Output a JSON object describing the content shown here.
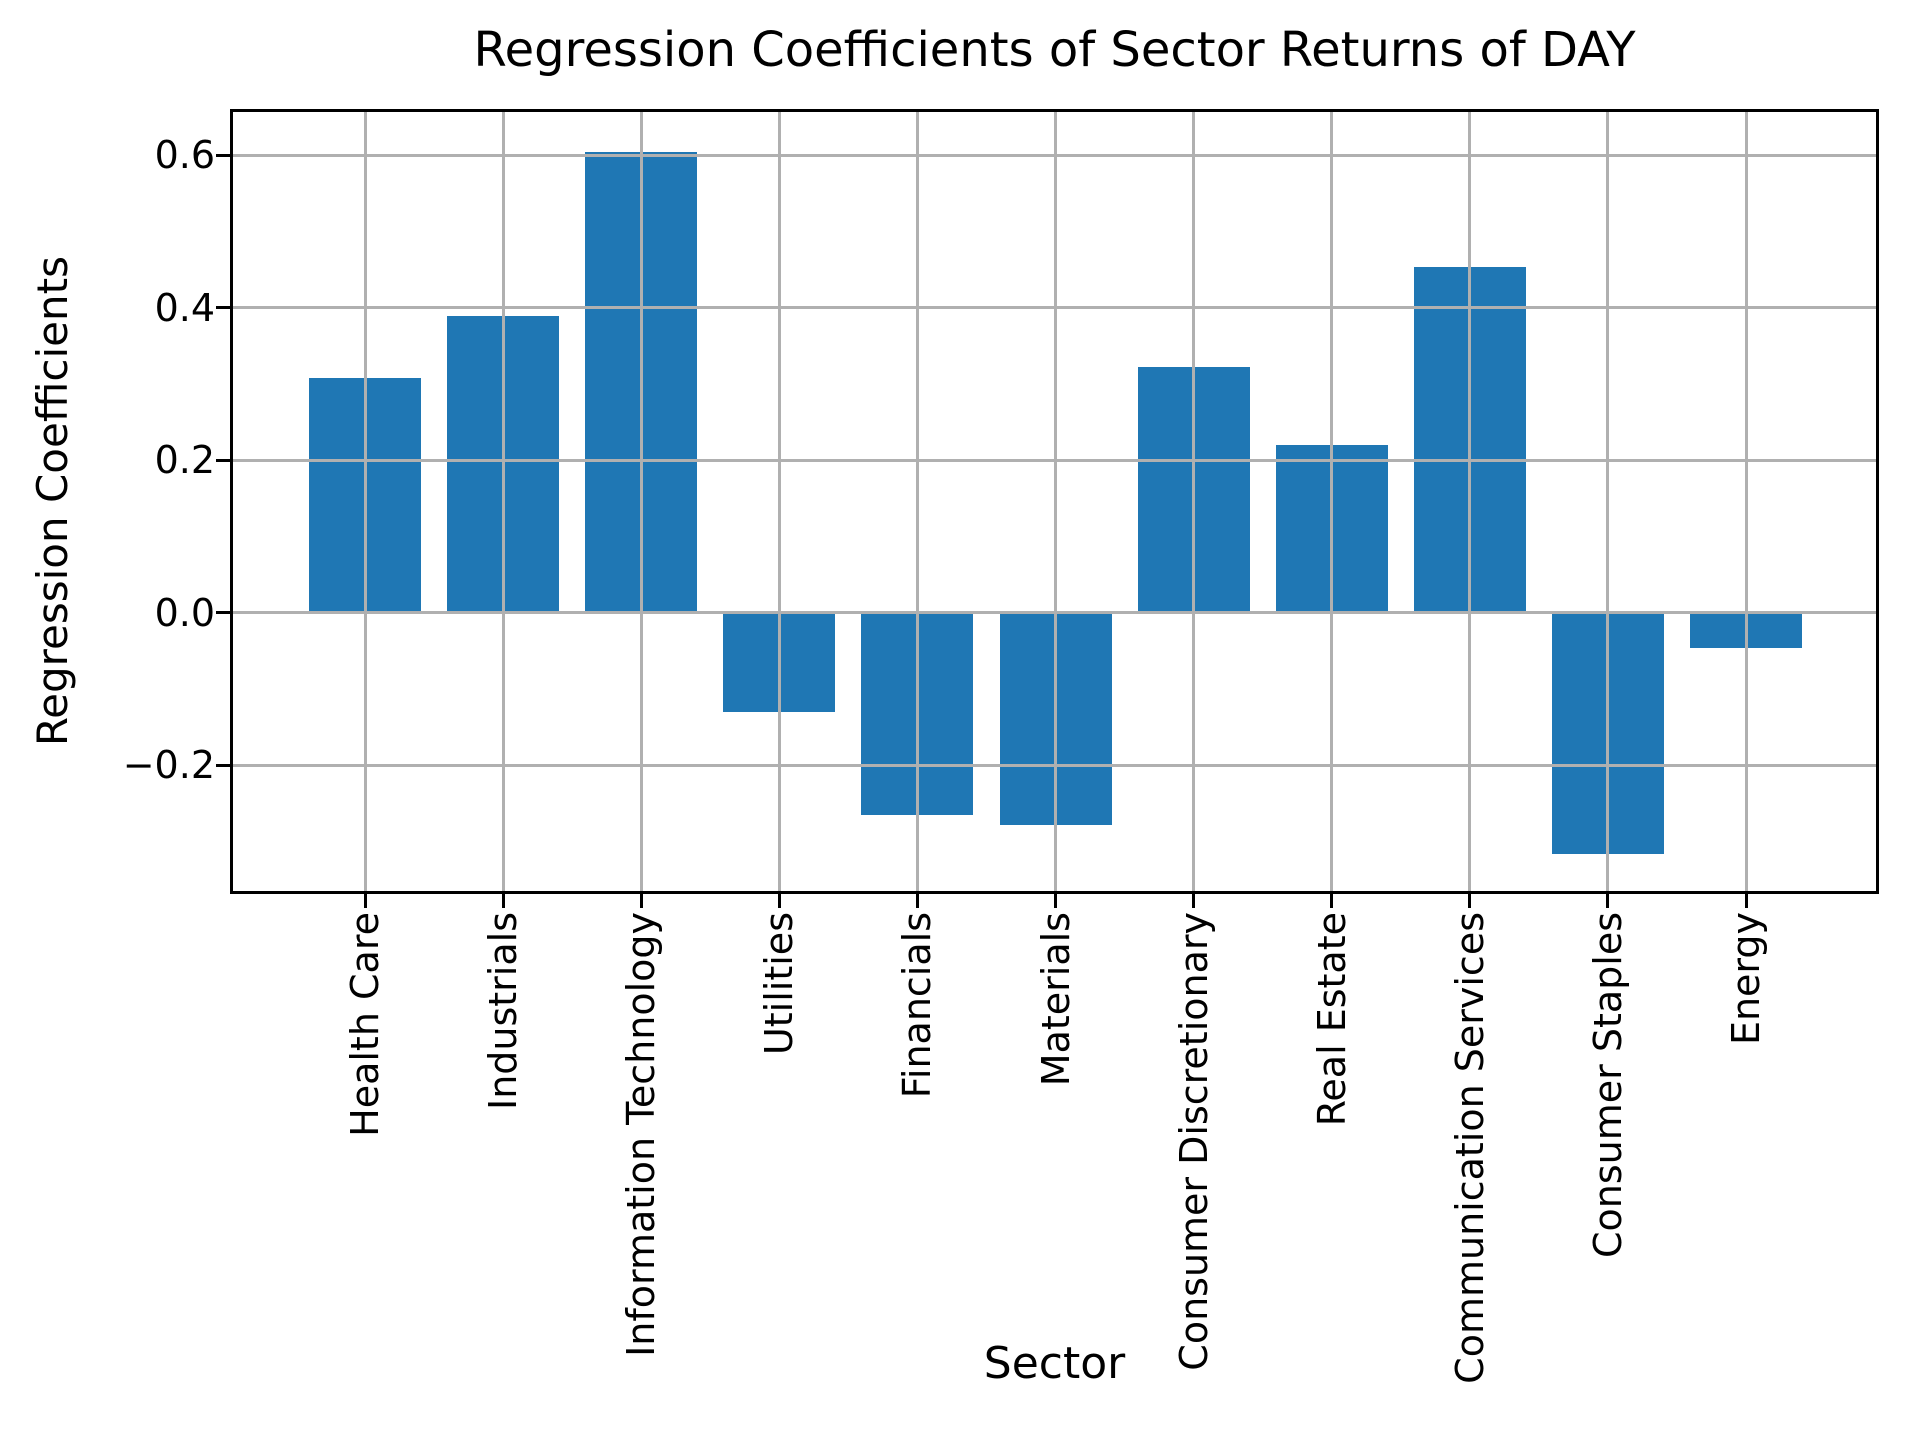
{
  "chart_data": {
    "type": "bar",
    "title": "Regression Coefficients of Sector Returns of DAY",
    "xlabel": "Sector",
    "ylabel": "Regression Coefficients",
    "categories": [
      "Health Care",
      "Industrials",
      "Information Technology",
      "Utilities",
      "Financials",
      "Materials",
      "Consumer Discretionary",
      "Real Estate",
      "Communication Services",
      "Consumer Staples",
      "Energy"
    ],
    "values": [
      0.308,
      0.39,
      0.604,
      -0.13,
      -0.265,
      -0.278,
      0.323,
      0.22,
      0.454,
      -0.316,
      -0.046
    ],
    "yticks": [
      0.6,
      0.4,
      0.2,
      0.0,
      -0.2
    ],
    "ytick_labels": [
      "0.6",
      "0.4",
      "0.2",
      "0.0",
      "−0.2"
    ],
    "ylim": [
      -0.3646,
      0.657
    ],
    "grid": true,
    "grid_axis": "both",
    "grid_above_bars": true,
    "legend": "none",
    "bar_color": "#1f77b4",
    "grid_color": "#b0b0b0",
    "spine_color": "#000000",
    "background_color": "#ffffff"
  }
}
